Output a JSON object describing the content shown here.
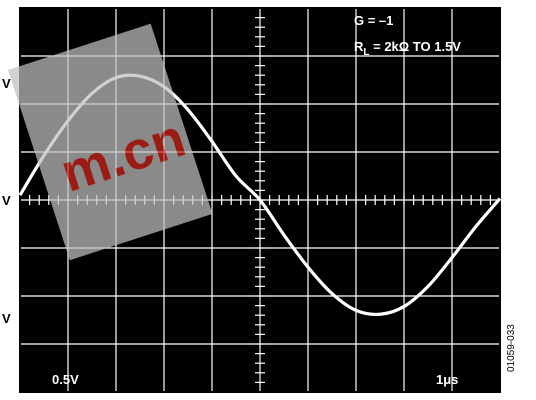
{
  "figure_id": "01059-033",
  "chart_data": {
    "type": "line",
    "annotation_lines": [
      "G = –1",
      "R",
      "L",
      " = 2kΩ TO 1.5V"
    ],
    "ylabels": [
      "V",
      "V",
      "V"
    ],
    "vertical_scale_label": "0.5V",
    "horizontal_scale_label": "1μs",
    "grid": true,
    "divisions": {
      "x": 10,
      "y": 8
    },
    "series": [
      {
        "x_div": [
          0,
          0.5,
          1,
          1.5,
          2,
          2.5,
          3,
          3.5,
          4,
          4.5,
          5,
          5.5,
          6,
          6.5,
          7,
          7.5,
          8,
          8.5,
          9,
          9.5,
          10
        ],
        "y_div": [
          0.1,
          0.93,
          1.65,
          2.22,
          2.55,
          2.58,
          2.36,
          1.88,
          1.22,
          0.5,
          0.0,
          -0.73,
          -1.4,
          -1.95,
          -2.3,
          -2.38,
          -2.22,
          -1.8,
          -1.2,
          -0.55,
          0.03
        ]
      }
    ],
    "colors": {
      "background": "#000000",
      "grid": "#ffffff",
      "trace": "#ffffff",
      "watermark": "#c0c0c0",
      "watermark_text": "#d7281e"
    }
  },
  "watermark": {
    "text": "m.cn"
  }
}
